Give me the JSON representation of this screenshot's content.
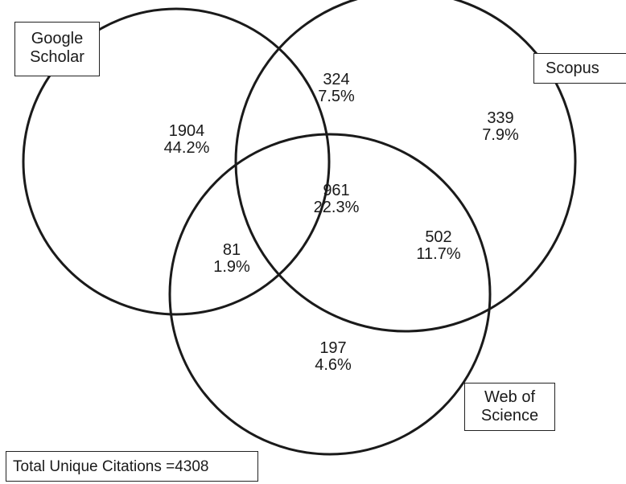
{
  "sets": {
    "google_scholar": {
      "line1": "Google",
      "line2": "Scholar"
    },
    "scopus": {
      "label": "Scopus"
    },
    "web_of_science": {
      "line1": "Web of",
      "line2": "Science"
    }
  },
  "regions": {
    "google_scholar_only": {
      "count": "1904",
      "percent": "44.2%"
    },
    "scopus_only": {
      "count": "339",
      "percent": "7.9%"
    },
    "web_of_science_only": {
      "count": "197",
      "percent": "4.6%"
    },
    "google_scholar_and_scopus": {
      "count": "324",
      "percent": "7.5%"
    },
    "google_scholar_and_web_of_science": {
      "count": "81",
      "percent": "1.9%"
    },
    "scopus_and_web_of_science": {
      "count": "502",
      "percent": "11.7%"
    },
    "all_three": {
      "count": "961",
      "percent": "22.3%"
    }
  },
  "total": {
    "label": "Total Unique Citations =4308"
  },
  "colors": {
    "stroke": "#1a1a1a",
    "background": "#ffffff"
  }
}
